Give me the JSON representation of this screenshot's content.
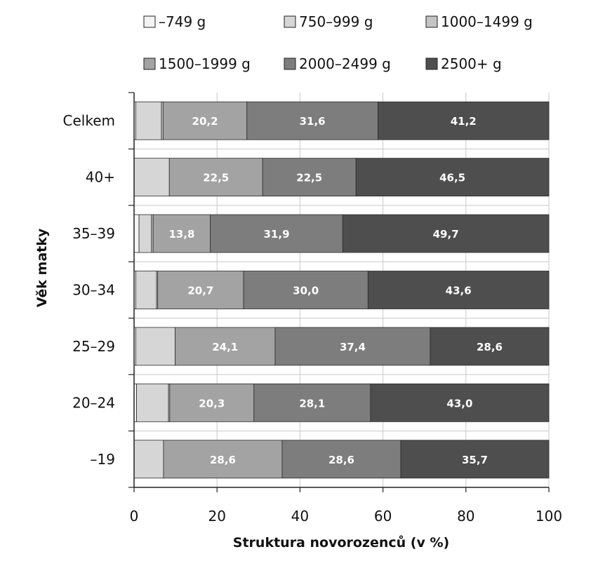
{
  "chart_data": {
    "type": "bar",
    "orientation": "horizontal",
    "stacked": true,
    "title": "",
    "xlabel": "Struktura novorozenců (v %)",
    "ylabel": "Věk matky",
    "xlim": [
      0,
      100
    ],
    "xticks": [
      "0",
      "20",
      "40",
      "60",
      "80",
      "100"
    ],
    "grid": "vertical",
    "legend_position": "top",
    "categories": [
      "Celkem",
      "40+",
      "35–39",
      "30–34",
      "25–29",
      "20–24",
      "–19"
    ],
    "series": [
      {
        "name": "–749 g",
        "color": "#f4f4f4",
        "values": [
          0.4,
          0.0,
          1.2,
          0.4,
          0.4,
          0.6,
          0.0
        ],
        "labels": [
          "",
          "",
          "",
          "",
          "",
          "",
          ""
        ]
      },
      {
        "name": "750–999 g",
        "color": "#d6d6d6",
        "values": [
          6.2,
          8.5,
          3.0,
          5.0,
          9.5,
          7.7,
          7.1
        ],
        "labels": [
          "",
          "",
          "",
          "",
          "",
          "",
          ""
        ]
      },
      {
        "name": "1000–1499 g",
        "color": "#c4c4c4",
        "values": [
          0.4,
          0.0,
          0.4,
          0.3,
          0.0,
          0.3,
          0.0
        ],
        "labels": [
          "",
          "",
          "",
          "",
          "",
          "",
          ""
        ]
      },
      {
        "name": "1500–1999 g",
        "color": "#a3a3a3",
        "values": [
          20.2,
          22.5,
          13.8,
          20.7,
          24.1,
          20.3,
          28.6
        ],
        "labels": [
          "20,2",
          "22,5",
          "13,8",
          "20,7",
          "24,1",
          "20,3",
          "28,6"
        ]
      },
      {
        "name": "2000–2499 g",
        "color": "#7d7d7d",
        "values": [
          31.6,
          22.5,
          31.9,
          30.0,
          37.4,
          28.1,
          28.6
        ],
        "labels": [
          "31,6",
          "22,5",
          "31,9",
          "30,0",
          "37,4",
          "28,1",
          "28,6"
        ]
      },
      {
        "name": "2500+ g",
        "color": "#4e4e4e",
        "values": [
          41.2,
          46.5,
          49.7,
          43.6,
          28.6,
          43.0,
          35.7
        ],
        "labels": [
          "41,2",
          "46,5",
          "49,7",
          "43,6",
          "28,6",
          "43,0",
          "35,7"
        ]
      }
    ]
  }
}
